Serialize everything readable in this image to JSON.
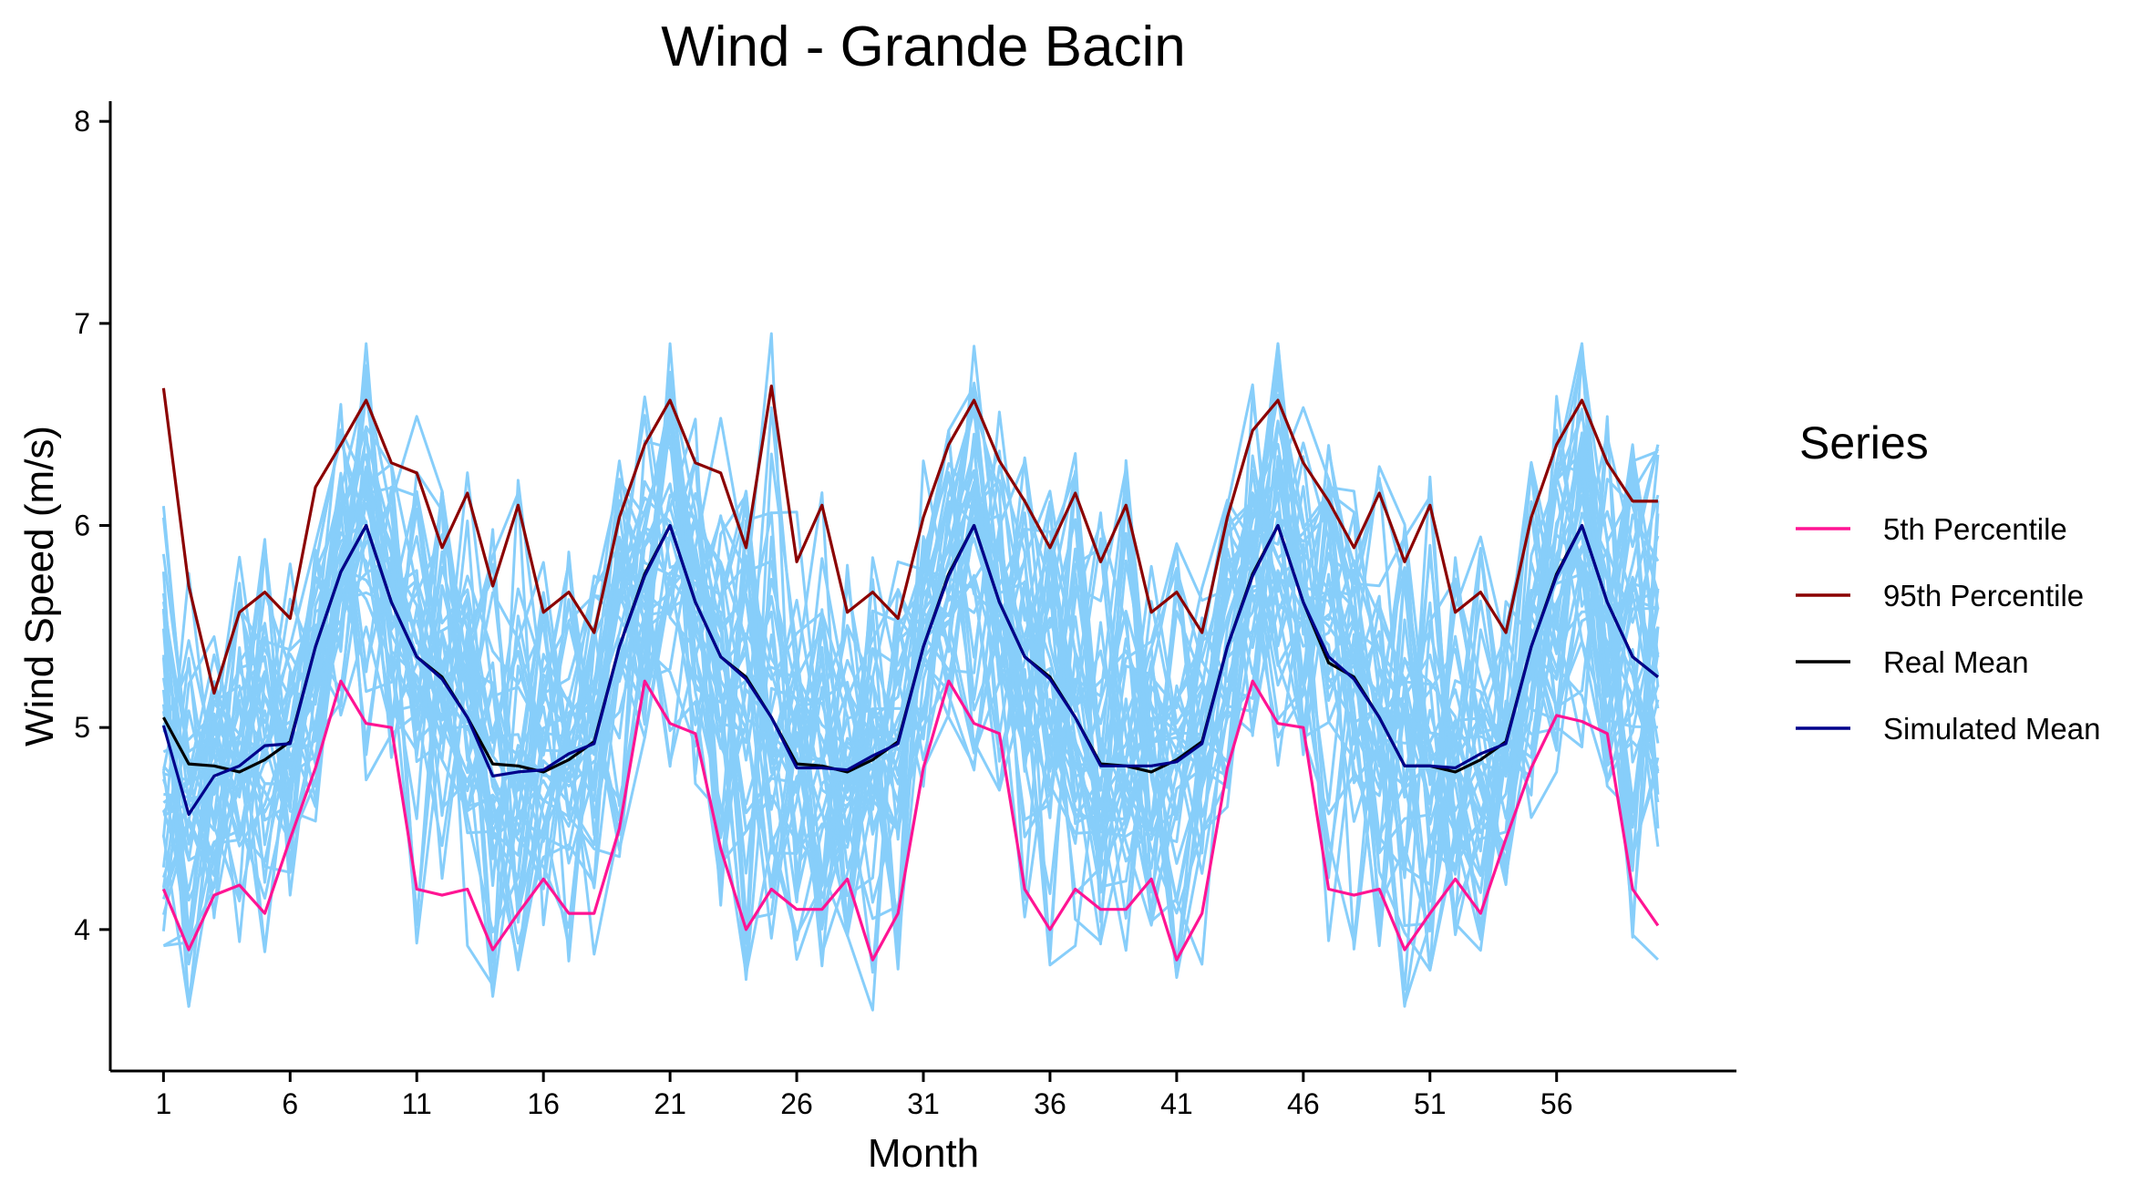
{
  "chart_data": {
    "type": "line",
    "title": "Wind - Grande Bacin",
    "xlabel": "Month",
    "ylabel": "Wind Speed (m/s)",
    "xlim": [
      -1.1,
      63.1
    ],
    "ylim": [
      3.3,
      8.1
    ],
    "xticks": [
      1,
      6,
      11,
      16,
      21,
      26,
      31,
      36,
      41,
      46,
      51,
      56
    ],
    "yticks": [
      4,
      5,
      6,
      7,
      8
    ],
    "grid": false,
    "legend": {
      "title": "Series",
      "placement": "right"
    },
    "colors": {
      "simulations": "#87CEFA",
      "p5": "#FF1493",
      "p95": "#8B0000",
      "real_mean": "#000000",
      "sim_mean": "#00008B"
    },
    "simulations": {
      "description_label": "",
      "n_runs": 40,
      "color": "#87CEFA"
    },
    "series": [
      {
        "name": "5th Percentile",
        "color": "#FF1493",
        "values": [
          4.2,
          3.9,
          4.17,
          4.22,
          4.08,
          4.45,
          4.8,
          5.23,
          5.02,
          5.0,
          4.2,
          4.17,
          4.2,
          3.9,
          4.08,
          4.25,
          4.08,
          4.08,
          4.5,
          5.23,
          5.02,
          4.97,
          4.4,
          4.0,
          4.2,
          4.1,
          4.1,
          4.25,
          3.85,
          4.08,
          4.8,
          5.23,
          5.02,
          4.97,
          4.2,
          4.0,
          4.2,
          4.1,
          4.1,
          4.25,
          3.85,
          4.08,
          4.8,
          5.23,
          5.02,
          5.0,
          4.2,
          4.17,
          4.2,
          3.9,
          4.08,
          4.25,
          4.08,
          4.45,
          4.8,
          5.06,
          5.03,
          4.97,
          4.2,
          4.02
        ]
      },
      {
        "name": "95th Percentile",
        "color": "#8B0000",
        "values": [
          6.68,
          5.7,
          5.17,
          5.57,
          5.67,
          5.54,
          6.19,
          6.4,
          6.62,
          6.31,
          6.26,
          5.89,
          6.16,
          5.7,
          6.1,
          5.57,
          5.67,
          5.47,
          6.04,
          6.4,
          6.62,
          6.31,
          6.26,
          5.89,
          6.69,
          5.82,
          6.1,
          5.57,
          5.67,
          5.54,
          6.04,
          6.4,
          6.62,
          6.32,
          6.12,
          5.89,
          6.16,
          5.82,
          6.1,
          5.57,
          5.67,
          5.47,
          6.04,
          6.47,
          6.62,
          6.31,
          6.12,
          5.89,
          6.16,
          5.82,
          6.1,
          5.57,
          5.67,
          5.47,
          6.04,
          6.4,
          6.62,
          6.31,
          6.12,
          6.12
        ]
      },
      {
        "name": "Real Mean",
        "color": "#000000",
        "values": [
          5.05,
          4.82,
          4.81,
          4.78,
          4.84,
          4.93,
          5.4,
          5.77,
          6.0,
          5.62,
          5.35,
          5.25,
          5.05,
          4.82,
          4.81,
          4.78,
          4.84,
          4.93,
          5.4,
          5.76,
          6.0,
          5.62,
          5.35,
          5.25,
          5.05,
          4.82,
          4.81,
          4.78,
          4.84,
          4.93,
          5.4,
          5.76,
          6.0,
          5.62,
          5.35,
          5.25,
          5.05,
          4.82,
          4.81,
          4.78,
          4.84,
          4.93,
          5.4,
          5.76,
          6.0,
          5.62,
          5.32,
          5.25,
          5.05,
          4.81,
          4.81,
          4.78,
          4.84,
          4.93,
          5.4,
          5.76,
          6.0,
          5.62,
          5.35,
          5.25
        ]
      },
      {
        "name": "Simulated Mean",
        "color": "#00008B",
        "values": [
          5.01,
          4.57,
          4.76,
          4.81,
          4.91,
          4.92,
          5.4,
          5.77,
          6.0,
          5.62,
          5.35,
          5.24,
          5.05,
          4.76,
          4.78,
          4.79,
          4.87,
          4.92,
          5.4,
          5.75,
          6.0,
          5.62,
          5.35,
          5.24,
          5.05,
          4.8,
          4.8,
          4.79,
          4.86,
          4.92,
          5.4,
          5.75,
          6.0,
          5.62,
          5.35,
          5.24,
          5.05,
          4.81,
          4.81,
          4.81,
          4.83,
          4.92,
          5.4,
          5.75,
          6.0,
          5.62,
          5.35,
          5.24,
          5.05,
          4.81,
          4.81,
          4.8,
          4.87,
          4.92,
          5.4,
          5.75,
          6.0,
          5.62,
          5.35,
          5.25
        ]
      }
    ]
  }
}
